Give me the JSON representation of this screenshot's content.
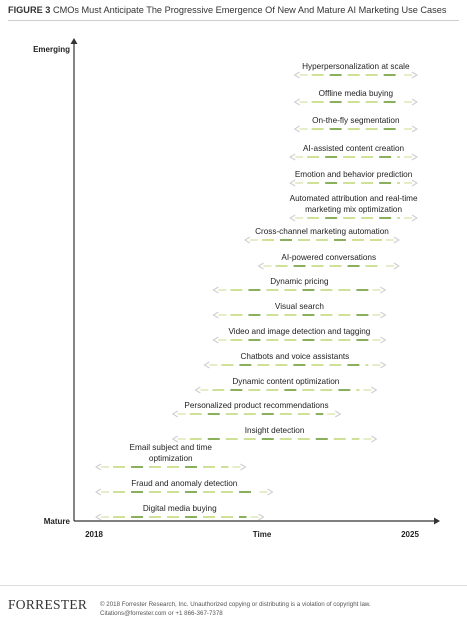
{
  "header": {
    "figure_label": "FIGURE 3",
    "title": "CMOs Must Anticipate The Progressive Emergence Of New And Mature AI Marketing Use Cases"
  },
  "footer": {
    "logo": "FORRESTER",
    "copyright": "© 2018 Forrester Research, Inc. Unauthorized copying or distributing is a violation of copyright law.",
    "contact": "Citations@forrester.com or +1 866-367-7378"
  },
  "colors": {
    "dash_light": "#c9de8a",
    "dash_dark": "#7ea84a",
    "dash_faint": "#e2edc2",
    "arrow": "#cfcfcf",
    "axis": "#333333"
  },
  "chart_data": {
    "type": "range",
    "xlabel": "Time",
    "ylabel_top": "Emerging",
    "ylabel_bottom": "Mature",
    "x_tick_labels": [
      "2018",
      "2025"
    ],
    "xlim": [
      2018,
      2025
    ],
    "series": [
      {
        "name": "Hyperpersonalization at scale",
        "start": 2022.6,
        "end": 2025.0
      },
      {
        "name": "Offline media buying",
        "start": 2022.6,
        "end": 2025.0
      },
      {
        "name": "On-the-fly segmentation",
        "start": 2022.6,
        "end": 2025.0
      },
      {
        "name": "AI-assisted content creation",
        "start": 2022.5,
        "end": 2025.0
      },
      {
        "name": "Emotion and behavior prediction",
        "start": 2022.5,
        "end": 2025.0
      },
      {
        "name": "Automated attribution and real-time marketing mix optimization",
        "start": 2022.5,
        "end": 2025.0
      },
      {
        "name": "Cross-channel marketing automation",
        "start": 2021.5,
        "end": 2024.6
      },
      {
        "name": "AI-powered conversations",
        "start": 2021.8,
        "end": 2024.6
      },
      {
        "name": "Dynamic pricing",
        "start": 2020.8,
        "end": 2024.3
      },
      {
        "name": "Visual search",
        "start": 2020.8,
        "end": 2024.3
      },
      {
        "name": "Video and image detection and tagging",
        "start": 2020.8,
        "end": 2024.3
      },
      {
        "name": "Chatbots and voice assistants",
        "start": 2020.6,
        "end": 2024.3
      },
      {
        "name": "Dynamic content optimization",
        "start": 2020.4,
        "end": 2024.1
      },
      {
        "name": "Personalized product recommendations",
        "start": 2019.9,
        "end": 2023.3
      },
      {
        "name": "Insight detection",
        "start": 2019.9,
        "end": 2024.1
      },
      {
        "name": "Email subject and time optimization",
        "start": 2018.2,
        "end": 2021.2
      },
      {
        "name": "Fraud and anomaly detection",
        "start": 2018.2,
        "end": 2021.8
      },
      {
        "name": "Digital media buying",
        "start": 2018.2,
        "end": 2021.6
      }
    ]
  }
}
